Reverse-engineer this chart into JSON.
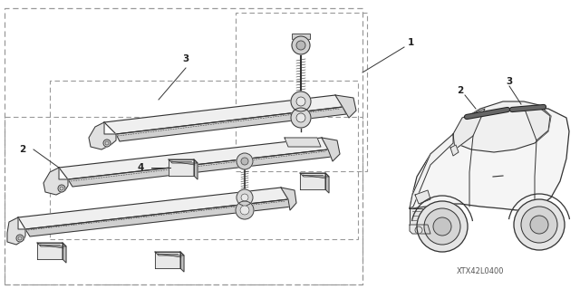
{
  "bg_color": "#ffffff",
  "line_color": "#333333",
  "light_gray": "#e8e8e8",
  "mid_gray": "#cccccc",
  "dark_gray": "#555555",
  "dashed_color": "#999999",
  "watermark": "XTX42L0400",
  "figsize": [
    6.4,
    3.19
  ],
  "dpi": 100,
  "label_fs": 7.5,
  "note_fs": 6
}
